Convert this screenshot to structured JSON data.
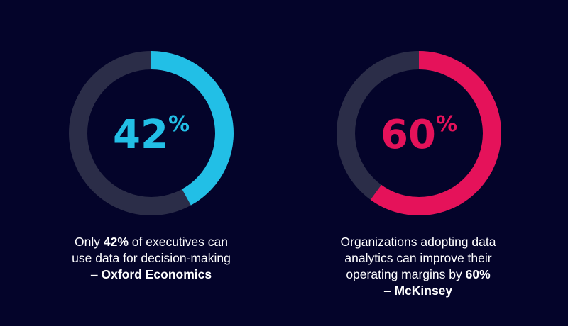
{
  "colors": {
    "background": "#04042a",
    "track": "#2b2d48",
    "left_accent": "#22bfe6",
    "right_accent": "#e5125a",
    "text": "#ffffff"
  },
  "chart_data": [
    {
      "type": "pie",
      "variant": "donut",
      "value_percent": 42,
      "center_value": "42",
      "center_unit": "%",
      "accent_color": "#22bfe6",
      "caption": {
        "line1_pre": "Only ",
        "line1_bold": "42%",
        "line1_post": " of executives can",
        "line2": "use data for decision-making",
        "line3_dash": "– ",
        "line3_bold": "Oxford Economics"
      }
    },
    {
      "type": "pie",
      "variant": "donut",
      "value_percent": 60,
      "center_value": "60",
      "center_unit": "%",
      "accent_color": "#e5125a",
      "caption": {
        "line1": "Organizations adopting data",
        "line2": "analytics can improve their",
        "line3_pre": "operating margins by ",
        "line3_bold": "60%",
        "line4_dash": "– ",
        "line4_bold": "McKinsey"
      }
    }
  ]
}
